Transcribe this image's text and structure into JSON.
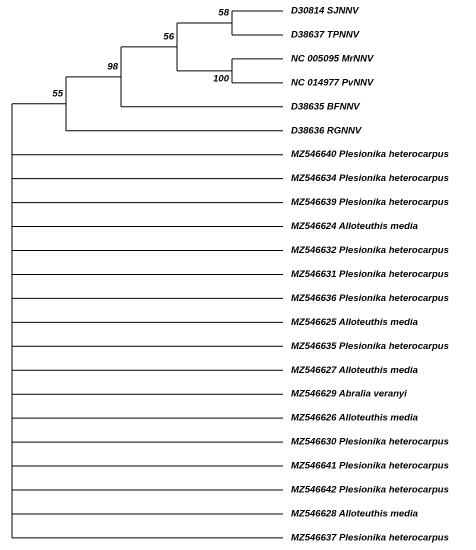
{
  "tree": {
    "leaves": [
      "D30814 SJNNV",
      "D38637 TPNNV",
      "NC 005095 MrNNV",
      "NC 014977 PvNNV",
      "D38635 BFNNV",
      "D38636 RGNNV",
      "MZ546640 Plesionika heterocarpus",
      "MZ546634 Plesionika heterocarpus",
      "MZ546639 Plesionika heterocarpus",
      "MZ546624 Alloteuthis media",
      "MZ546632 Plesionika heterocarpus",
      "MZ546631 Plesionika heterocarpus",
      "MZ546636 Plesionika heterocarpus",
      "MZ546625 Alloteuthis media",
      "MZ546635 Plesionika heterocarpus",
      "MZ546627 Alloteuthis media",
      "MZ546629 Abralia veranyi",
      "MZ546626 Alloteuthis media",
      "MZ546630 Plesionika heterocarpus",
      "MZ546641 Plesionika heterocarpus",
      "MZ546642 Plesionika heterocarpus",
      "MZ546628 Alloteuthis media",
      "MZ546637 Plesionika heterocarpus"
    ],
    "bootstrap": [
      "58",
      "56",
      "98",
      "100",
      "55"
    ]
  }
}
